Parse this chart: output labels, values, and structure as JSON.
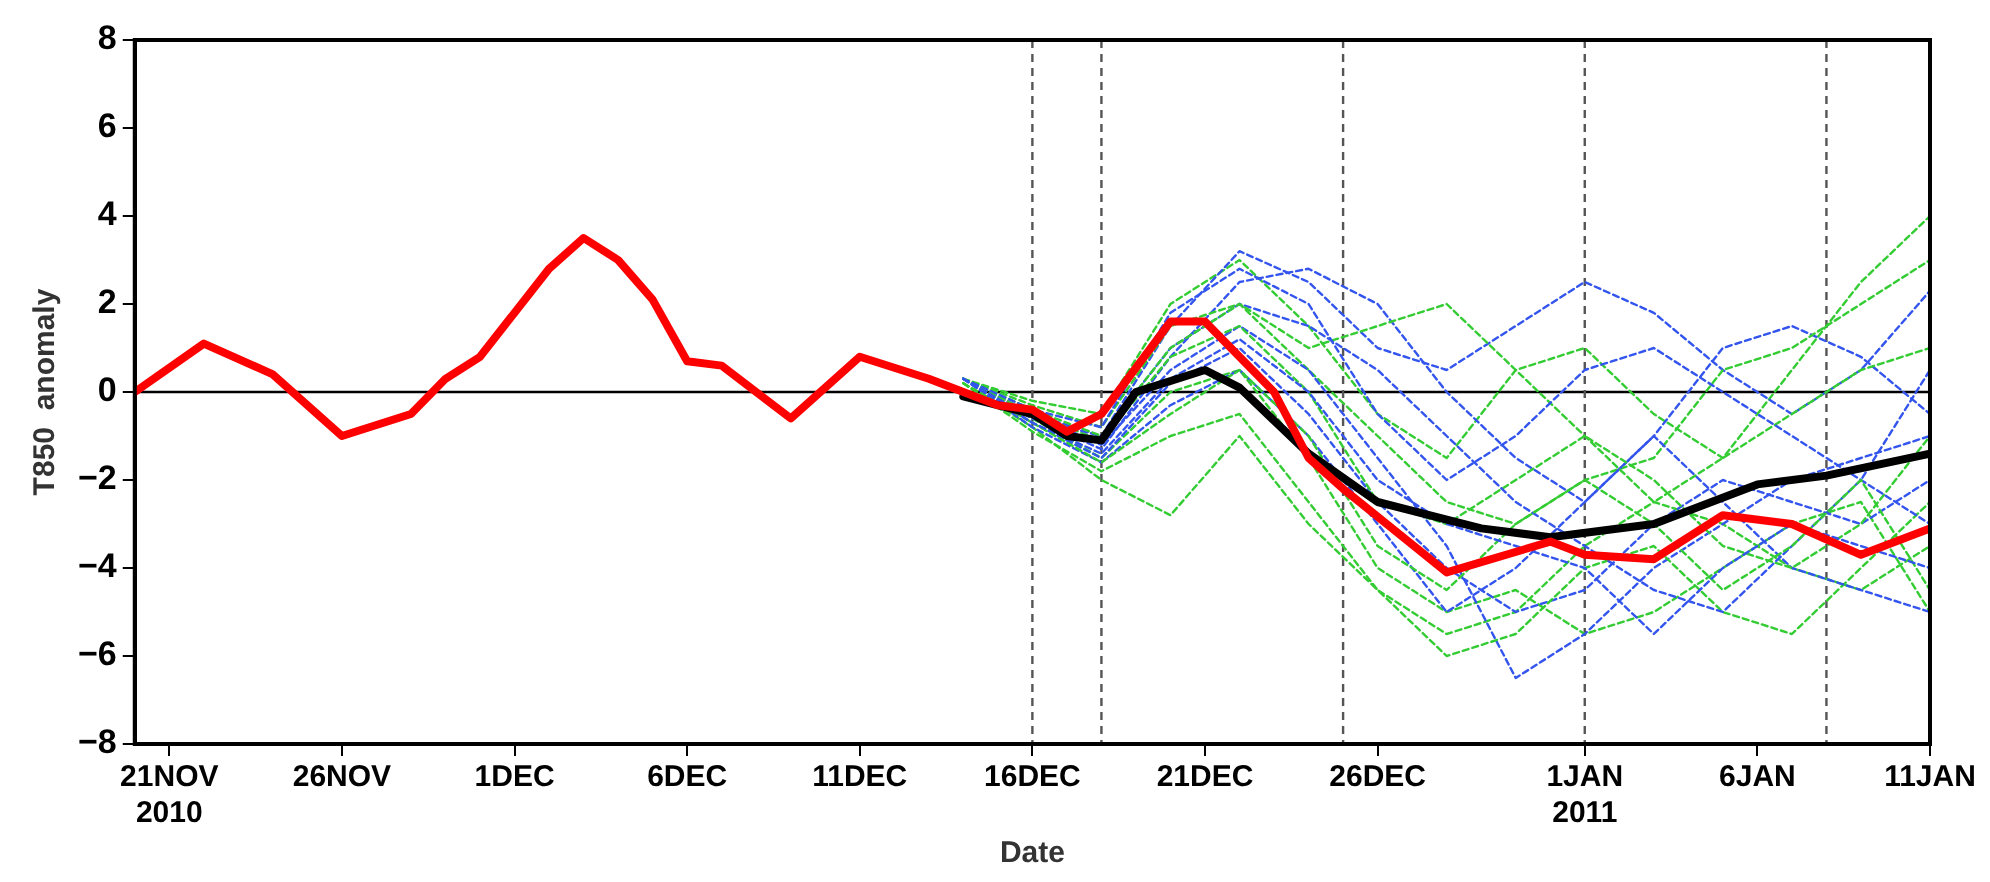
{
  "chart_data": {
    "type": "line",
    "xlabel": "Date",
    "ylabel": "T850  anomaly",
    "x": [
      "2010-12-14",
      "2010-12-16",
      "2010-12-18",
      "2010-12-20",
      "2010-12-22",
      "2010-12-24",
      "2010-12-26",
      "2010-12-28",
      "2010-12-30",
      "2011-01-01",
      "2011-01-03",
      "2011-01-05",
      "2011-01-07",
      "2011-01-09",
      "2011-01-11"
    ],
    "xlim": [
      "2010-11-20",
      "2011-01-11"
    ],
    "xticks": [
      {
        "value": "2010-11-21",
        "label": "21NOV\n2010"
      },
      {
        "value": "2010-11-26",
        "label": "26NOV"
      },
      {
        "value": "2010-12-01",
        "label": "1DEC"
      },
      {
        "value": "2010-12-06",
        "label": "6DEC"
      },
      {
        "value": "2010-12-11",
        "label": "11DEC"
      },
      {
        "value": "2010-12-16",
        "label": "16DEC"
      },
      {
        "value": "2010-12-21",
        "label": "21DEC"
      },
      {
        "value": "2010-12-26",
        "label": "26DEC"
      },
      {
        "value": "2011-01-01",
        "label": "1JAN\n2011"
      },
      {
        "value": "2011-01-06",
        "label": "6JAN"
      },
      {
        "value": "2011-01-11",
        "label": "11JAN"
      }
    ],
    "ylim": [
      -8,
      8
    ],
    "yticks": [
      -8,
      -6,
      -4,
      -2,
      0,
      2,
      4,
      6,
      8
    ],
    "grid": false,
    "legend": false,
    "marker": "none",
    "ref_lines": [
      {
        "axis": "y",
        "value": 0,
        "color": "#000000",
        "line_style": "solid"
      },
      {
        "axis": "x",
        "value": "2010-12-16",
        "color": "#555555",
        "line_style": "dashed"
      },
      {
        "axis": "x",
        "value": "2010-12-18",
        "color": "#555555",
        "line_style": "dashed"
      },
      {
        "axis": "x",
        "value": "2010-12-25",
        "color": "#555555",
        "line_style": "dashed"
      },
      {
        "axis": "x",
        "value": "2011-01-01",
        "color": "#555555",
        "line_style": "dashed"
      },
      {
        "axis": "x",
        "value": "2011-01-08",
        "color": "#555555",
        "line_style": "dashed"
      }
    ],
    "series": [
      {
        "color": "#33cc33",
        "line_style": "dashed",
        "values": [
          0.3,
          -0.2,
          -0.5,
          2.0,
          3.0,
          1.5,
          -0.5,
          -1.5,
          0.5,
          1.0,
          -0.5,
          -1.5,
          0.5,
          2.5,
          4.0
        ]
      },
      {
        "color": "#3355ee",
        "line_style": "dashed",
        "values": [
          0.3,
          -0.5,
          -1.0,
          1.5,
          3.2,
          2.5,
          1.0,
          0.5,
          1.5,
          2.5,
          1.8,
          0.5,
          -0.5,
          0.5,
          2.3
        ]
      },
      {
        "color": "#33cc33",
        "line_style": "dashed",
        "values": [
          0.2,
          -0.8,
          -2.0,
          -2.8,
          -1.0,
          -3.0,
          -4.5,
          -5.5,
          -5.0,
          -3.5,
          -2.5,
          -3.0,
          -4.0,
          -4.5,
          -3.5
        ]
      },
      {
        "color": "#3355ee",
        "line_style": "dashed",
        "values": [
          0.3,
          -0.6,
          -1.3,
          0.8,
          2.5,
          2.8,
          2.0,
          0,
          -1.5,
          -2.5,
          -1.0,
          1.0,
          1.5,
          0.8,
          -0.5
        ]
      },
      {
        "color": "#33cc33",
        "line_style": "dashed",
        "values": [
          0.3,
          -0.6,
          -1.5,
          0,
          0.5,
          -1.5,
          -4.0,
          -5.0,
          -4.5,
          -5.5,
          -5.0,
          -4.0,
          -3.0,
          -2.5,
          -5.0
        ]
      },
      {
        "color": "#3355ee",
        "line_style": "dashed",
        "values": [
          0.3,
          -0.7,
          -1.5,
          0.2,
          1.0,
          -0.5,
          -2.5,
          -4.0,
          -5.0,
          -4.5,
          -3.0,
          -2.0,
          -2.5,
          -3.0,
          -2.0
        ]
      },
      {
        "color": "#33cc33",
        "line_style": "dashed",
        "values": [
          0.3,
          -0.3,
          -0.8,
          1.5,
          2.0,
          0.5,
          -1.0,
          -2.5,
          -3.0,
          -2.0,
          -1.5,
          0.5,
          1.0,
          2.0,
          3.0
        ]
      },
      {
        "color": "#3355ee",
        "line_style": "dashed",
        "values": [
          0.3,
          -0.5,
          -1.2,
          0.5,
          1.5,
          0.5,
          -1.5,
          -3.5,
          -6.5,
          -5.5,
          -4.0,
          -3.0,
          -2.0,
          -1.5,
          -1.0
        ]
      },
      {
        "color": "#33cc33",
        "line_style": "dashed",
        "values": [
          0.2,
          -0.9,
          -1.8,
          -1.0,
          -0.5,
          -2.5,
          -4.5,
          -6.0,
          -5.5,
          -4.0,
          -3.5,
          -5.0,
          -5.5,
          -4.0,
          -2.5
        ]
      },
      {
        "color": "#3355ee",
        "line_style": "dashed",
        "values": [
          0.3,
          -0.8,
          -1.6,
          -0.3,
          0.5,
          -1.0,
          -3.0,
          -5.0,
          -4.0,
          -2.5,
          -1.0,
          -2.5,
          -4.0,
          -4.5,
          -5.0
        ]
      },
      {
        "color": "#33cc33",
        "line_style": "dashed",
        "values": [
          0.3,
          -0.5,
          -1.1,
          0.8,
          1.5,
          0,
          -2.5,
          -3.0,
          -2.0,
          -1.0,
          -2.0,
          -3.5,
          -4.0,
          -3.0,
          -1.0
        ]
      },
      {
        "color": "#3355ee",
        "line_style": "dashed",
        "values": [
          0.3,
          -0.6,
          -1.0,
          1.0,
          2.0,
          1.5,
          0.5,
          -1.0,
          -2.5,
          -3.5,
          -4.5,
          -5.0,
          -3.5,
          -2.0,
          0.5
        ]
      },
      {
        "color": "#33cc33",
        "line_style": "dashed",
        "values": [
          0.3,
          -0.4,
          -1.0,
          1.0,
          2.0,
          1.0,
          1.5,
          2.0,
          0.5,
          -1.0,
          -2.5,
          -1.5,
          -0.5,
          0.5,
          1.0
        ]
      },
      {
        "color": "#3355ee",
        "line_style": "dashed",
        "values": [
          0.3,
          -0.4,
          -0.8,
          1.8,
          2.8,
          2.0,
          -0.5,
          -2.0,
          -1.0,
          0.5,
          1.0,
          0,
          -1.0,
          -2.0,
          -3.0
        ]
      },
      {
        "color": "#33cc33",
        "line_style": "dashed",
        "values": [
          0.2,
          -0.7,
          -1.6,
          -0.5,
          0.5,
          -1.0,
          -3.5,
          -4.5,
          -3.0,
          -2.0,
          -3.0,
          -4.5,
          -3.5,
          -2.0,
          -4.5
        ]
      },
      {
        "color": "#3355ee",
        "line_style": "dashed",
        "values": [
          0.3,
          -0.7,
          -1.4,
          0.3,
          1.2,
          0,
          -2.0,
          -3.0,
          -3.5,
          -4.0,
          -5.5,
          -4.0,
          -3.0,
          -3.5,
          -4.0
        ]
      },
      {
        "color": "#000000",
        "line_style": "solid",
        "x": [
          "2010-12-14",
          "2010-12-16",
          "2010-12-17",
          "2010-12-18",
          "2010-12-19",
          "2010-12-21",
          "2010-12-22",
          "2010-12-24",
          "2010-12-26",
          "2010-12-29",
          "2010-12-31",
          "2011-01-03",
          "2011-01-06",
          "2011-01-08",
          "2011-01-11"
        ],
        "values": [
          -0.1,
          -0.5,
          -1.0,
          -1.1,
          0.0,
          0.5,
          0.1,
          -1.4,
          -2.5,
          -3.1,
          -3.3,
          -3.0,
          -2.1,
          -1.9,
          -1.4
        ]
      },
      {
        "color": "#ff0000",
        "line_style": "solid",
        "x": [
          "2010-11-20",
          "2010-11-22",
          "2010-11-24",
          "2010-11-26",
          "2010-11-28",
          "2010-11-29",
          "2010-11-30",
          "2010-12-02",
          "2010-12-03",
          "2010-12-04",
          "2010-12-05",
          "2010-12-06",
          "2010-12-07",
          "2010-12-09",
          "2010-12-11",
          "2010-12-13",
          "2010-12-15",
          "2010-12-16",
          "2010-12-17",
          "2010-12-18",
          "2010-12-20",
          "2010-12-21",
          "2010-12-23",
          "2010-12-24",
          "2010-12-25",
          "2010-12-28",
          "2010-12-31",
          "2011-01-01",
          "2011-01-03",
          "2011-01-05",
          "2011-01-07",
          "2011-01-09",
          "2011-01-11"
        ],
        "values": [
          0,
          1.1,
          0.4,
          -1.0,
          -0.5,
          0.3,
          0.8,
          2.8,
          3.5,
          3.0,
          2.1,
          0.7,
          0.6,
          -0.6,
          0.8,
          0.3,
          -0.3,
          -0.4,
          -0.9,
          -0.5,
          1.6,
          1.6,
          0,
          -1.5,
          -2.2,
          -4.1,
          -3.4,
          -3.7,
          -3.8,
          -2.8,
          -3.0,
          -3.7,
          -3.1
        ]
      }
    ]
  }
}
